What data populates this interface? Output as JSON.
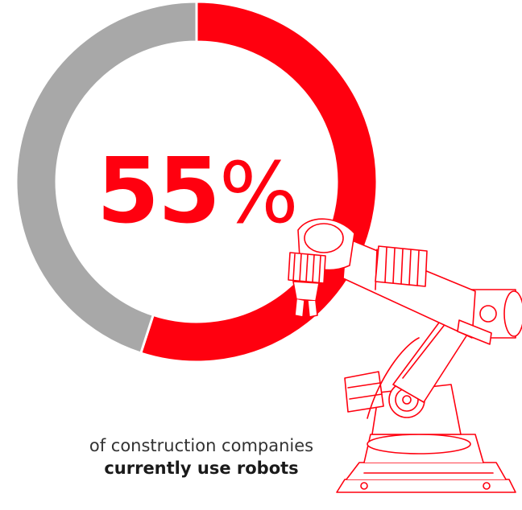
{
  "chart_data": {
    "type": "pie",
    "title": "",
    "slices": [
      {
        "label": "use robots",
        "value": 55,
        "color": "#ff000f"
      },
      {
        "label": "",
        "value": 45,
        "color": "#a8a8a8"
      }
    ],
    "center_value": "55",
    "center_unit": "%"
  },
  "caption": {
    "line1": "of construction companies",
    "line2": "currently use robots"
  },
  "colors": {
    "accent": "#ff000f",
    "neutral": "#a8a8a8",
    "illustration": "#ff000f"
  },
  "illustration": {
    "icon": "industrial-robot-arm-icon"
  }
}
